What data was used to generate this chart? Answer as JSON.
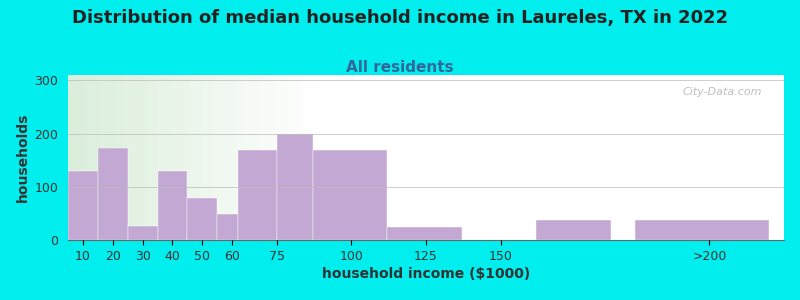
{
  "title": "Distribution of median household income in Laureles, TX in 2022",
  "subtitle": "All residents",
  "xlabel": "household income ($1000)",
  "ylabel": "households",
  "title_fontsize": 13,
  "subtitle_fontsize": 11,
  "label_fontsize": 10,
  "tick_fontsize": 9,
  "background_outer": "#00EEEE",
  "bar_color": "#C4A8D4",
  "watermark": "City-Data.com",
  "bar_left_edges": [
    5,
    15,
    25,
    35,
    45,
    55,
    62,
    75,
    87,
    112,
    137,
    162,
    195
  ],
  "bar_widths": [
    10,
    10,
    10,
    10,
    10,
    7,
    13,
    12,
    25,
    25,
    25,
    25,
    45
  ],
  "values": [
    130,
    172,
    27,
    130,
    78,
    48,
    170,
    200,
    170,
    25,
    0,
    37,
    37
  ],
  "ylim": [
    0,
    310
  ],
  "yticks": [
    0,
    100,
    200,
    300
  ],
  "xtick_labels": [
    "10",
    "20",
    "30",
    "40",
    "50",
    "60",
    "75",
    "100",
    "125",
    "150",
    ">200"
  ],
  "xtick_positions": [
    10,
    20,
    30,
    40,
    50,
    60,
    75,
    100,
    125,
    150,
    220
  ],
  "xlim": [
    5,
    245
  ]
}
